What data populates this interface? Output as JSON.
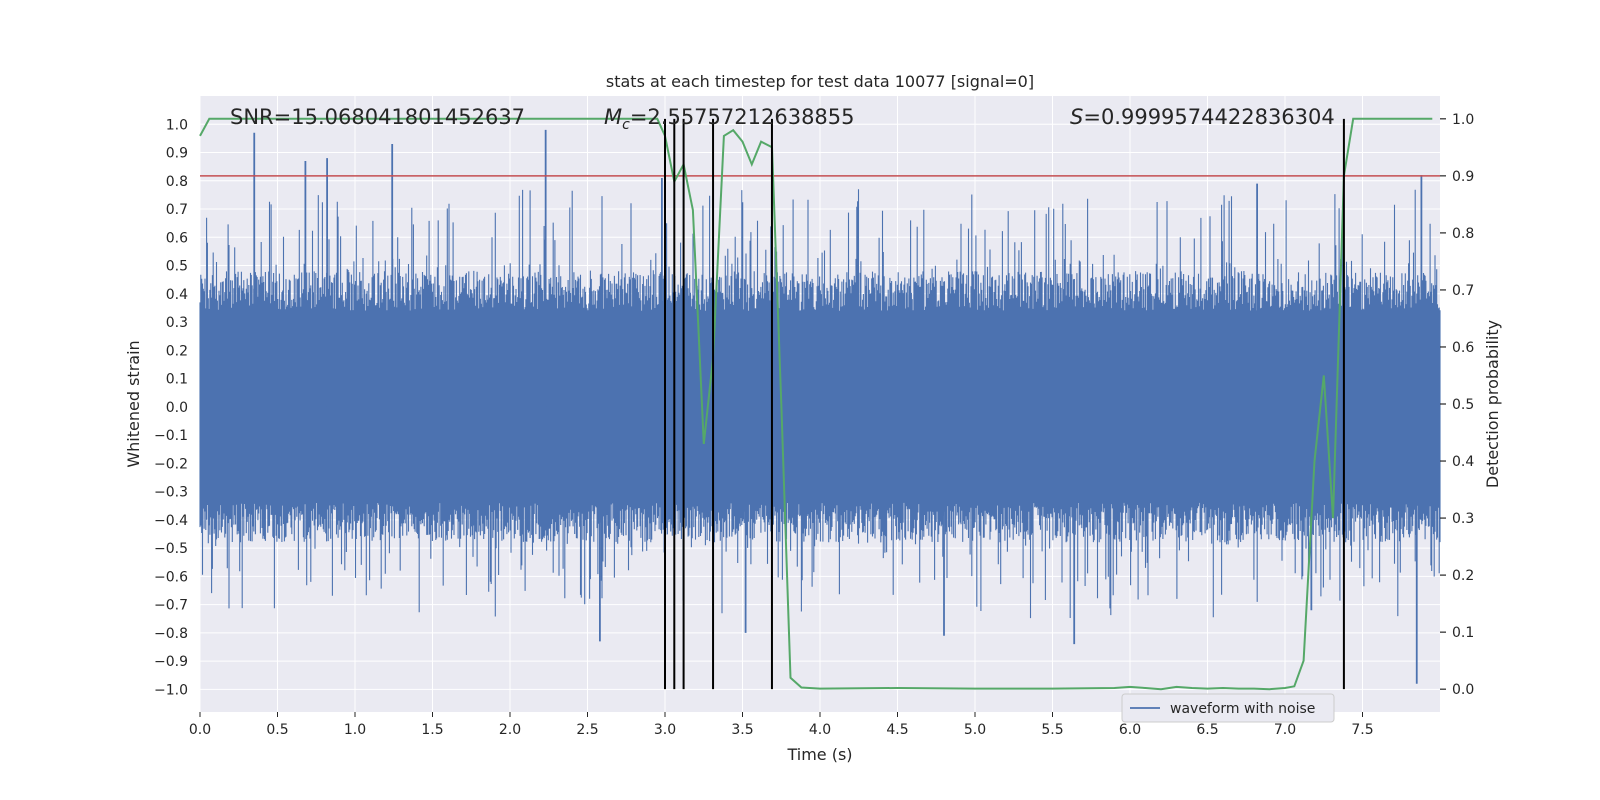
{
  "chart_data": {
    "type": "line",
    "title": "stats at each timestep for test data 10077 [signal=0]",
    "xlabel": "Time (s)",
    "ylabel_left": "Whitened strain",
    "ylabel_right": "Detection probability",
    "xlim": [
      0.0,
      8.0
    ],
    "ylim_left": [
      -1.08,
      1.1
    ],
    "ylim_right": [
      -0.04,
      1.04
    ],
    "x_ticks": [
      0.0,
      0.5,
      1.0,
      1.5,
      2.0,
      2.5,
      3.0,
      3.5,
      4.0,
      4.5,
      5.0,
      5.5,
      6.0,
      6.5,
      7.0,
      7.5
    ],
    "x_tick_labels": [
      "0.0",
      "0.5",
      "1.0",
      "1.5",
      "2.0",
      "2.5",
      "3.0",
      "3.5",
      "4.0",
      "4.5",
      "5.0",
      "5.5",
      "6.0",
      "6.5",
      "7.0",
      "7.5"
    ],
    "y_left_ticks": [
      -1.0,
      -0.9,
      -0.8,
      -0.7,
      -0.6,
      -0.5,
      -0.4,
      -0.3,
      -0.2,
      -0.1,
      0.0,
      0.1,
      0.2,
      0.3,
      0.4,
      0.5,
      0.6,
      0.7,
      0.8,
      0.9,
      1.0
    ],
    "y_left_tick_labels": [
      "−1.0",
      "−0.9",
      "−0.8",
      "−0.7",
      "−0.6",
      "−0.5",
      "−0.4",
      "−0.3",
      "−0.2",
      "−0.1",
      "0.0",
      "0.1",
      "0.2",
      "0.3",
      "0.4",
      "0.5",
      "0.6",
      "0.7",
      "0.8",
      "0.9",
      "1.0"
    ],
    "y_right_ticks": [
      0.0,
      0.1,
      0.2,
      0.3,
      0.4,
      0.5,
      0.6,
      0.7,
      0.8,
      0.9,
      1.0
    ],
    "y_right_tick_labels": [
      "0.0",
      "0.1",
      "0.2",
      "0.3",
      "0.4",
      "0.5",
      "0.6",
      "0.7",
      "0.8",
      "0.9",
      "1.0"
    ],
    "grid": true,
    "annotations": {
      "snr": "SNR=15.068041801452637",
      "mc_symbol": "M",
      "mc_sub": "c",
      "mc_value": "=2.55757212638855",
      "s_symbol": "S",
      "s_value": "=0.9999574422836304"
    },
    "threshold_line": {
      "axis": "right",
      "value": 0.9,
      "color": "#c44e52"
    },
    "vertical_lines": {
      "x": [
        3.0,
        3.06,
        3.12,
        3.31,
        3.69,
        7.38
      ],
      "y_range_right": [
        0.0,
        1.0
      ],
      "color": "#000000"
    },
    "series": [
      {
        "name": "waveform with noise",
        "axis": "left",
        "color": "#4c72b0",
        "style": "noise-band",
        "x_range": [
          0.0,
          8.0
        ],
        "band_core": [
          -0.4,
          0.4
        ],
        "peaks": [
          {
            "x": 0.35,
            "y": 0.97
          },
          {
            "x": 0.68,
            "y": 0.87
          },
          {
            "x": 0.82,
            "y": 0.88
          },
          {
            "x": 1.24,
            "y": 0.93
          },
          {
            "x": 2.23,
            "y": 0.98
          },
          {
            "x": 2.98,
            "y": 0.81
          },
          {
            "x": 6.82,
            "y": 0.79
          },
          {
            "x": 7.88,
            "y": 0.82
          },
          {
            "x": 2.58,
            "y": -0.83
          },
          {
            "x": 3.52,
            "y": -0.8
          },
          {
            "x": 4.8,
            "y": -0.81
          },
          {
            "x": 5.64,
            "y": -0.84
          },
          {
            "x": 7.85,
            "y": -0.98
          },
          {
            "x": 7.17,
            "y": -0.72
          }
        ]
      },
      {
        "name": "detection probability",
        "axis": "right",
        "color": "#55a868",
        "x": [
          0.0,
          0.06,
          0.12,
          0.5,
          1.0,
          1.5,
          2.0,
          2.5,
          2.75,
          2.95,
          3.0,
          3.06,
          3.12,
          3.18,
          3.25,
          3.31,
          3.38,
          3.44,
          3.5,
          3.56,
          3.62,
          3.69,
          3.75,
          3.81,
          3.88,
          4.0,
          4.5,
          5.0,
          5.5,
          5.9,
          6.0,
          6.1,
          6.2,
          6.3,
          6.4,
          6.5,
          6.6,
          6.7,
          6.8,
          6.9,
          7.0,
          7.06,
          7.12,
          7.19,
          7.25,
          7.31,
          7.38,
          7.44,
          7.5,
          7.75,
          7.95
        ],
        "y": [
          0.97,
          1.0,
          1.0,
          1.0,
          1.0,
          1.0,
          1.0,
          1.0,
          1.0,
          1.0,
          0.97,
          0.89,
          0.92,
          0.84,
          0.43,
          0.58,
          0.97,
          0.98,
          0.96,
          0.92,
          0.96,
          0.95,
          0.5,
          0.02,
          0.003,
          0.001,
          0.002,
          0.001,
          0.001,
          0.002,
          0.004,
          0.002,
          0.0,
          0.004,
          0.002,
          0.001,
          0.002,
          0.001,
          0.001,
          0.0,
          0.002,
          0.005,
          0.05,
          0.4,
          0.55,
          0.3,
          0.9,
          1.0,
          1.0,
          1.0,
          1.0
        ]
      }
    ],
    "legend": {
      "position": "bottom-right",
      "entries": [
        "waveform with noise"
      ]
    }
  }
}
